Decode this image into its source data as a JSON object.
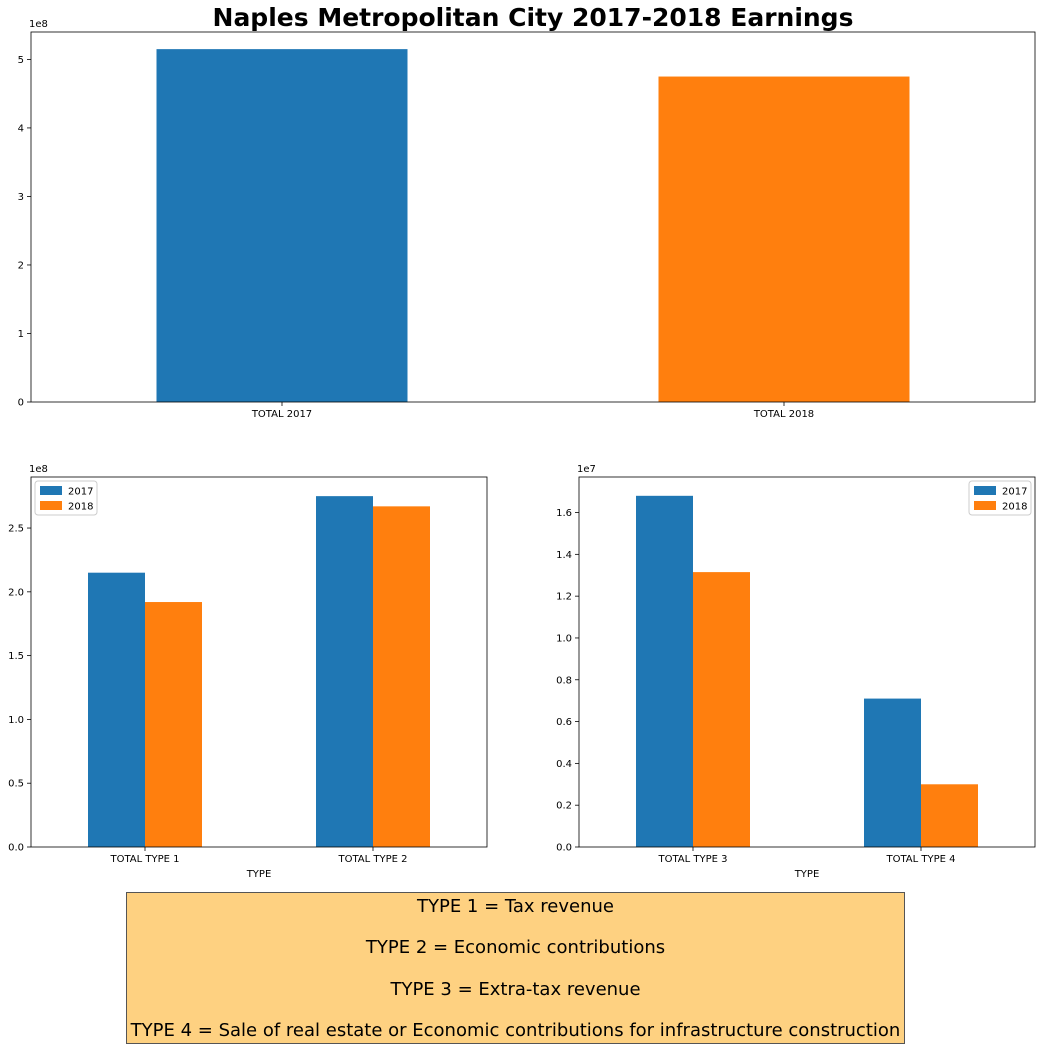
{
  "figure": {
    "title": "Naples Metropolitan City 2017-2018 Earnings"
  },
  "colors": {
    "series_2017": "#1f77b4",
    "series_2018": "#ff7f0e",
    "note_background": "#fed181"
  },
  "chart_data": [
    {
      "type": "bar",
      "title": "Naples Metropolitan City 2017-2018 Earnings",
      "categories": [
        "TOTAL 2017",
        "TOTAL 2018"
      ],
      "values": [
        515000000,
        475000000
      ],
      "bar_colors": [
        "#1f77b4",
        "#ff7f0e"
      ],
      "xlabel": "",
      "ylabel": "",
      "ylim": [
        0,
        540000000
      ],
      "yticks": [
        0,
        100000000,
        200000000,
        300000000,
        400000000,
        500000000
      ],
      "ytick_labels": [
        "0",
        "1",
        "2",
        "3",
        "4",
        "5"
      ],
      "offset_label": "1e8",
      "grid": false,
      "legend": "none"
    },
    {
      "type": "bar",
      "categories": [
        "TOTAL TYPE 1",
        "TOTAL TYPE 2"
      ],
      "series": [
        {
          "name": "2017",
          "color": "#1f77b4",
          "values": [
            215000000,
            275000000
          ]
        },
        {
          "name": "2018",
          "color": "#ff7f0e",
          "values": [
            192000000,
            267000000
          ]
        }
      ],
      "xlabel": "TYPE",
      "ylabel": "",
      "ylim": [
        0,
        290000000
      ],
      "yticks": [
        0,
        50000000,
        100000000,
        150000000,
        200000000,
        250000000
      ],
      "ytick_labels": [
        "0.0",
        "0.5",
        "1.0",
        "1.5",
        "2.0",
        "2.5"
      ],
      "offset_label": "1e8",
      "grid": false,
      "legend": "top-left"
    },
    {
      "type": "bar",
      "categories": [
        "TOTAL TYPE 3",
        "TOTAL TYPE 4"
      ],
      "series": [
        {
          "name": "2017",
          "color": "#1f77b4",
          "values": [
            16800000,
            7100000
          ]
        },
        {
          "name": "2018",
          "color": "#ff7f0e",
          "values": [
            13150000,
            3000000
          ]
        }
      ],
      "xlabel": "TYPE",
      "ylabel": "",
      "ylim": [
        0,
        17700000
      ],
      "yticks": [
        0,
        2000000,
        4000000,
        6000000,
        8000000,
        10000000,
        12000000,
        14000000,
        16000000
      ],
      "ytick_labels": [
        "0.0",
        "0.2",
        "0.4",
        "0.6",
        "0.8",
        "1.0",
        "1.2",
        "1.4",
        "1.6"
      ],
      "offset_label": "1e7",
      "grid": false,
      "legend": "top-right"
    }
  ],
  "type_notes": [
    "TYPE 1 = Tax revenue",
    "TYPE 2 = Economic contributions",
    "TYPE 3 = Extra-tax revenue",
    "TYPE 4 = Sale of real estate or Economic contributions for infrastructure construction"
  ]
}
